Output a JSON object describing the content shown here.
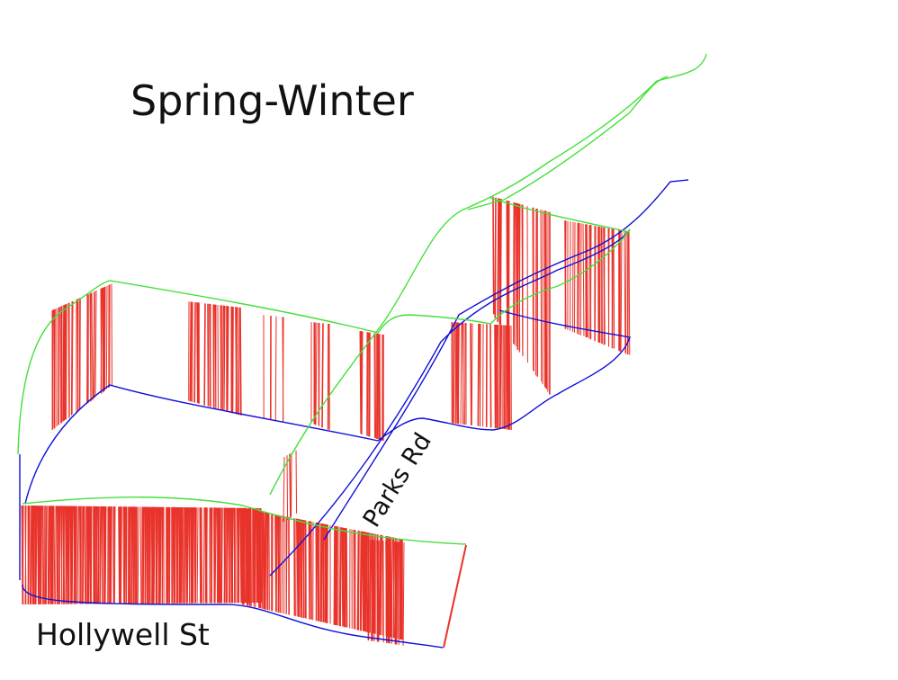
{
  "title": "Spring-Winter",
  "street_labels": {
    "parks": "Parks Rd",
    "hollywell": "Hollywell St"
  },
  "colors": {
    "base_route": "#1010d8",
    "upper_route": "#44e03a",
    "bars": "#e8322a",
    "text": "#111111"
  }
}
